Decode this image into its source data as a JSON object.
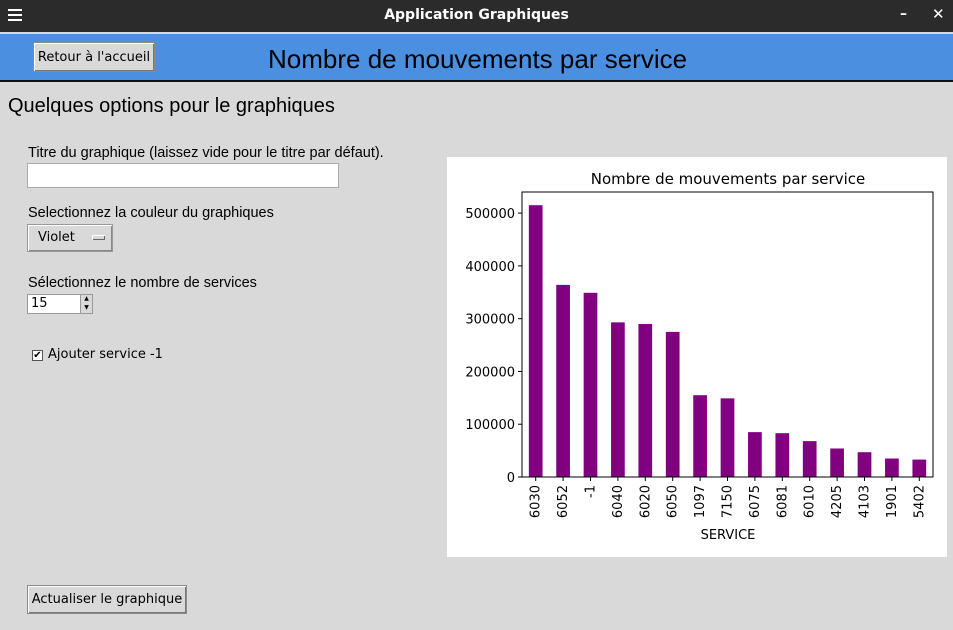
{
  "window": {
    "title": "Application Graphiques"
  },
  "header": {
    "home_button": "Retour à l'accueil",
    "title": "Nombre de mouvements par service"
  },
  "options": {
    "title": "Quelques options pour le graphiques",
    "chart_title_label": "Titre du graphique (laissez vide pour le titre par défaut).",
    "chart_title_value": "",
    "color_label": "Selectionnez la couleur du graphiques",
    "color_value": "Violet",
    "count_label": "Sélectionnez le nombre de services",
    "count_value": "15",
    "add_service_label": "Ajouter service -1",
    "add_service_checked": true,
    "refresh_button": "Actualiser le graphique"
  },
  "chart_data": {
    "type": "bar",
    "title": "Nombre de mouvements par service",
    "xlabel": "SERVICE",
    "ylabel": "",
    "color": "#800080",
    "categories": [
      "6030",
      "6052",
      "-1",
      "6040",
      "6020",
      "6050",
      "1097",
      "7150",
      "6075",
      "6081",
      "6010",
      "4205",
      "4103",
      "1901",
      "5402"
    ],
    "values": [
      515000,
      364000,
      349000,
      293000,
      290000,
      275000,
      155000,
      149000,
      85000,
      83000,
      68000,
      54000,
      47000,
      35000,
      33000
    ],
    "ylim": [
      0,
      540000
    ],
    "yticks": [
      0,
      100000,
      200000,
      300000,
      400000,
      500000
    ],
    "ytick_labels": [
      "0",
      "100000",
      "200000",
      "300000",
      "400000",
      "500000"
    ],
    "grid": false,
    "legend": "none"
  }
}
